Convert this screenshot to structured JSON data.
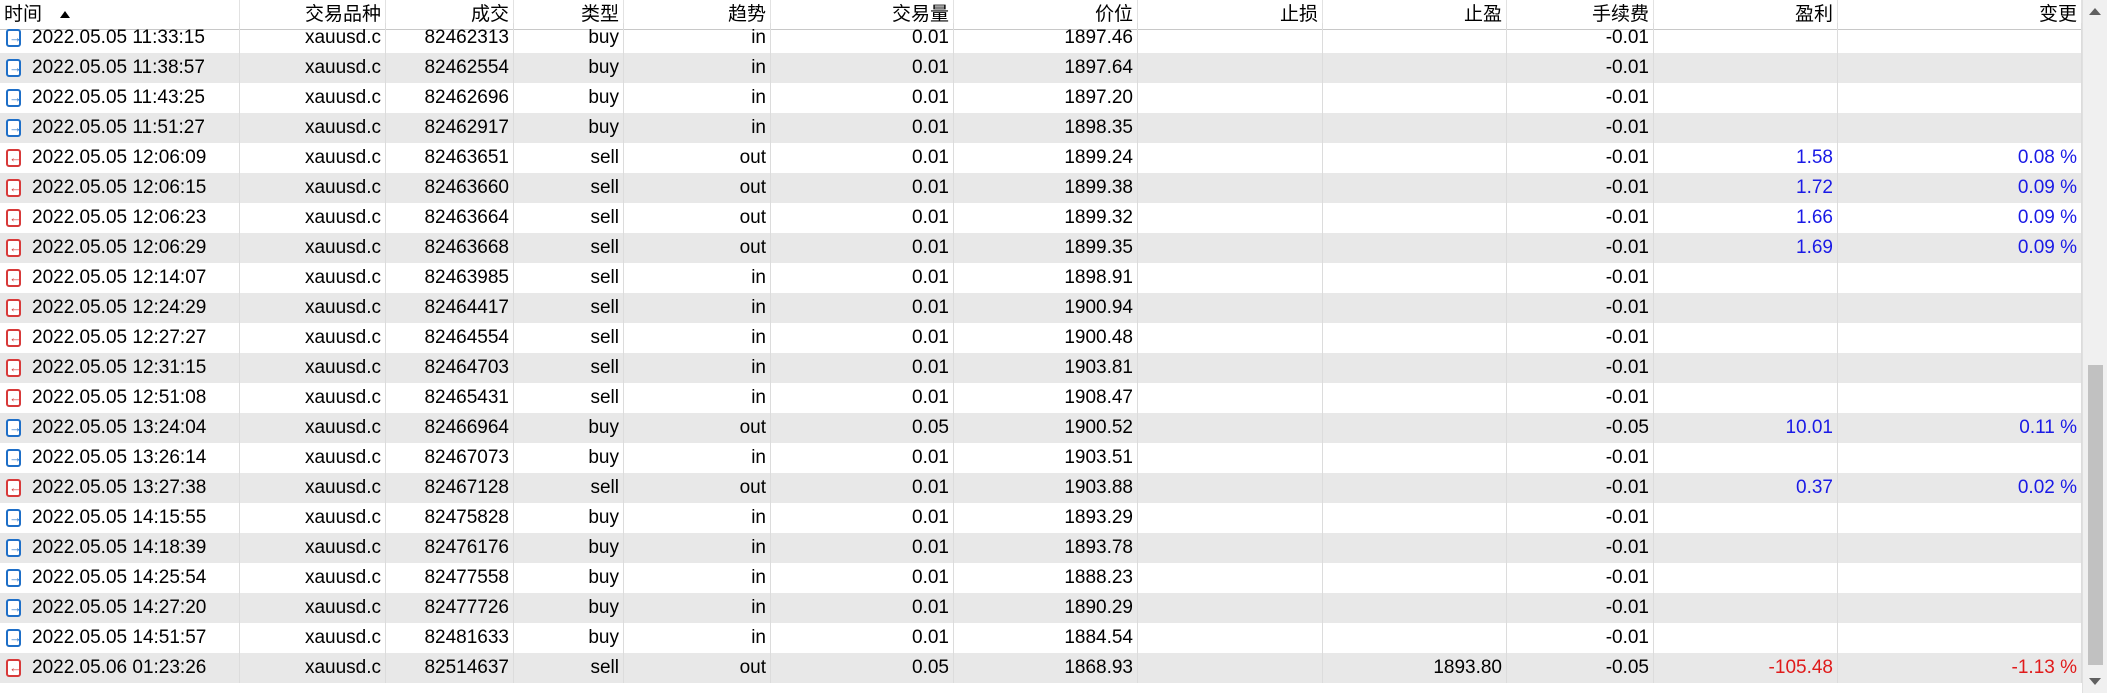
{
  "columns": [
    "时间",
    "交易品种",
    "成交",
    "类型",
    "趋势",
    "交易量",
    "价位",
    "止损",
    "止盈",
    "手续费",
    "盈利",
    "变更"
  ],
  "rows": [
    {
      "time": "2022.05.05 11:33:15",
      "symbol": "xauusd.c",
      "deal": "82462313",
      "type": "buy",
      "direction": "in",
      "volume": "0.01",
      "price": "1897.46",
      "sl": "",
      "tp": "",
      "commission": "-0.01",
      "profit": "",
      "change": "",
      "icon": "deal-in-icon"
    },
    {
      "time": "2022.05.05 11:38:57",
      "symbol": "xauusd.c",
      "deal": "82462554",
      "type": "buy",
      "direction": "in",
      "volume": "0.01",
      "price": "1897.64",
      "sl": "",
      "tp": "",
      "commission": "-0.01",
      "profit": "",
      "change": "",
      "icon": "deal-in-icon"
    },
    {
      "time": "2022.05.05 11:43:25",
      "symbol": "xauusd.c",
      "deal": "82462696",
      "type": "buy",
      "direction": "in",
      "volume": "0.01",
      "price": "1897.20",
      "sl": "",
      "tp": "",
      "commission": "-0.01",
      "profit": "",
      "change": "",
      "icon": "deal-in-icon"
    },
    {
      "time": "2022.05.05 11:51:27",
      "symbol": "xauusd.c",
      "deal": "82462917",
      "type": "buy",
      "direction": "in",
      "volume": "0.01",
      "price": "1898.35",
      "sl": "",
      "tp": "",
      "commission": "-0.01",
      "profit": "",
      "change": "",
      "icon": "deal-in-icon"
    },
    {
      "time": "2022.05.05 12:06:09",
      "symbol": "xauusd.c",
      "deal": "82463651",
      "type": "sell",
      "direction": "out",
      "volume": "0.01",
      "price": "1899.24",
      "sl": "",
      "tp": "",
      "commission": "-0.01",
      "profit": "1.58",
      "change": "0.08 %",
      "icon": "deal-out-icon"
    },
    {
      "time": "2022.05.05 12:06:15",
      "symbol": "xauusd.c",
      "deal": "82463660",
      "type": "sell",
      "direction": "out",
      "volume": "0.01",
      "price": "1899.38",
      "sl": "",
      "tp": "",
      "commission": "-0.01",
      "profit": "1.72",
      "change": "0.09 %",
      "icon": "deal-out-icon"
    },
    {
      "time": "2022.05.05 12:06:23",
      "symbol": "xauusd.c",
      "deal": "82463664",
      "type": "sell",
      "direction": "out",
      "volume": "0.01",
      "price": "1899.32",
      "sl": "",
      "tp": "",
      "commission": "-0.01",
      "profit": "1.66",
      "change": "0.09 %",
      "icon": "deal-out-icon"
    },
    {
      "time": "2022.05.05 12:06:29",
      "symbol": "xauusd.c",
      "deal": "82463668",
      "type": "sell",
      "direction": "out",
      "volume": "0.01",
      "price": "1899.35",
      "sl": "",
      "tp": "",
      "commission": "-0.01",
      "profit": "1.69",
      "change": "0.09 %",
      "icon": "deal-out-icon"
    },
    {
      "time": "2022.05.05 12:14:07",
      "symbol": "xauusd.c",
      "deal": "82463985",
      "type": "sell",
      "direction": "in",
      "volume": "0.01",
      "price": "1898.91",
      "sl": "",
      "tp": "",
      "commission": "-0.01",
      "profit": "",
      "change": "",
      "icon": "deal-out-icon"
    },
    {
      "time": "2022.05.05 12:24:29",
      "symbol": "xauusd.c",
      "deal": "82464417",
      "type": "sell",
      "direction": "in",
      "volume": "0.01",
      "price": "1900.94",
      "sl": "",
      "tp": "",
      "commission": "-0.01",
      "profit": "",
      "change": "",
      "icon": "deal-out-icon"
    },
    {
      "time": "2022.05.05 12:27:27",
      "symbol": "xauusd.c",
      "deal": "82464554",
      "type": "sell",
      "direction": "in",
      "volume": "0.01",
      "price": "1900.48",
      "sl": "",
      "tp": "",
      "commission": "-0.01",
      "profit": "",
      "change": "",
      "icon": "deal-out-icon"
    },
    {
      "time": "2022.05.05 12:31:15",
      "symbol": "xauusd.c",
      "deal": "82464703",
      "type": "sell",
      "direction": "in",
      "volume": "0.01",
      "price": "1903.81",
      "sl": "",
      "tp": "",
      "commission": "-0.01",
      "profit": "",
      "change": "",
      "icon": "deal-out-icon"
    },
    {
      "time": "2022.05.05 12:51:08",
      "symbol": "xauusd.c",
      "deal": "82465431",
      "type": "sell",
      "direction": "in",
      "volume": "0.01",
      "price": "1908.47",
      "sl": "",
      "tp": "",
      "commission": "-0.01",
      "profit": "",
      "change": "",
      "icon": "deal-out-icon"
    },
    {
      "time": "2022.05.05 13:24:04",
      "symbol": "xauusd.c",
      "deal": "82466964",
      "type": "buy",
      "direction": "out",
      "volume": "0.05",
      "price": "1900.52",
      "sl": "",
      "tp": "",
      "commission": "-0.05",
      "profit": "10.01",
      "change": "0.11 %",
      "icon": "deal-in-icon"
    },
    {
      "time": "2022.05.05 13:26:14",
      "symbol": "xauusd.c",
      "deal": "82467073",
      "type": "buy",
      "direction": "in",
      "volume": "0.01",
      "price": "1903.51",
      "sl": "",
      "tp": "",
      "commission": "-0.01",
      "profit": "",
      "change": "",
      "icon": "deal-in-icon"
    },
    {
      "time": "2022.05.05 13:27:38",
      "symbol": "xauusd.c",
      "deal": "82467128",
      "type": "sell",
      "direction": "out",
      "volume": "0.01",
      "price": "1903.88",
      "sl": "",
      "tp": "",
      "commission": "-0.01",
      "profit": "0.37",
      "change": "0.02 %",
      "icon": "deal-out-icon"
    },
    {
      "time": "2022.05.05 14:15:55",
      "symbol": "xauusd.c",
      "deal": "82475828",
      "type": "buy",
      "direction": "in",
      "volume": "0.01",
      "price": "1893.29",
      "sl": "",
      "tp": "",
      "commission": "-0.01",
      "profit": "",
      "change": "",
      "icon": "deal-in-icon"
    },
    {
      "time": "2022.05.05 14:18:39",
      "symbol": "xauusd.c",
      "deal": "82476176",
      "type": "buy",
      "direction": "in",
      "volume": "0.01",
      "price": "1893.78",
      "sl": "",
      "tp": "",
      "commission": "-0.01",
      "profit": "",
      "change": "",
      "icon": "deal-in-icon"
    },
    {
      "time": "2022.05.05 14:25:54",
      "symbol": "xauusd.c",
      "deal": "82477558",
      "type": "buy",
      "direction": "in",
      "volume": "0.01",
      "price": "1888.23",
      "sl": "",
      "tp": "",
      "commission": "-0.01",
      "profit": "",
      "change": "",
      "icon": "deal-in-icon"
    },
    {
      "time": "2022.05.05 14:27:20",
      "symbol": "xauusd.c",
      "deal": "82477726",
      "type": "buy",
      "direction": "in",
      "volume": "0.01",
      "price": "1890.29",
      "sl": "",
      "tp": "",
      "commission": "-0.01",
      "profit": "",
      "change": "",
      "icon": "deal-in-icon"
    },
    {
      "time": "2022.05.05 14:51:57",
      "symbol": "xauusd.c",
      "deal": "82481633",
      "type": "buy",
      "direction": "in",
      "volume": "0.01",
      "price": "1884.54",
      "sl": "",
      "tp": "",
      "commission": "-0.01",
      "profit": "",
      "change": "",
      "icon": "deal-in-icon"
    },
    {
      "time": "2022.05.06 01:23:26",
      "symbol": "xauusd.c",
      "deal": "82514637",
      "type": "sell",
      "direction": "out",
      "volume": "0.05",
      "price": "1868.93",
      "sl": "",
      "tp": "1893.80",
      "commission": "-0.05",
      "profit": "-105.48",
      "change": "-1.13 %",
      "icon": "deal-out-icon"
    }
  ],
  "colors": {
    "positive": "#1a1ae6",
    "negative": "#e01b1b",
    "row_alt": "#e8e8e8",
    "icon_in": "#1e6fc8",
    "icon_out": "#d83a3a"
  }
}
